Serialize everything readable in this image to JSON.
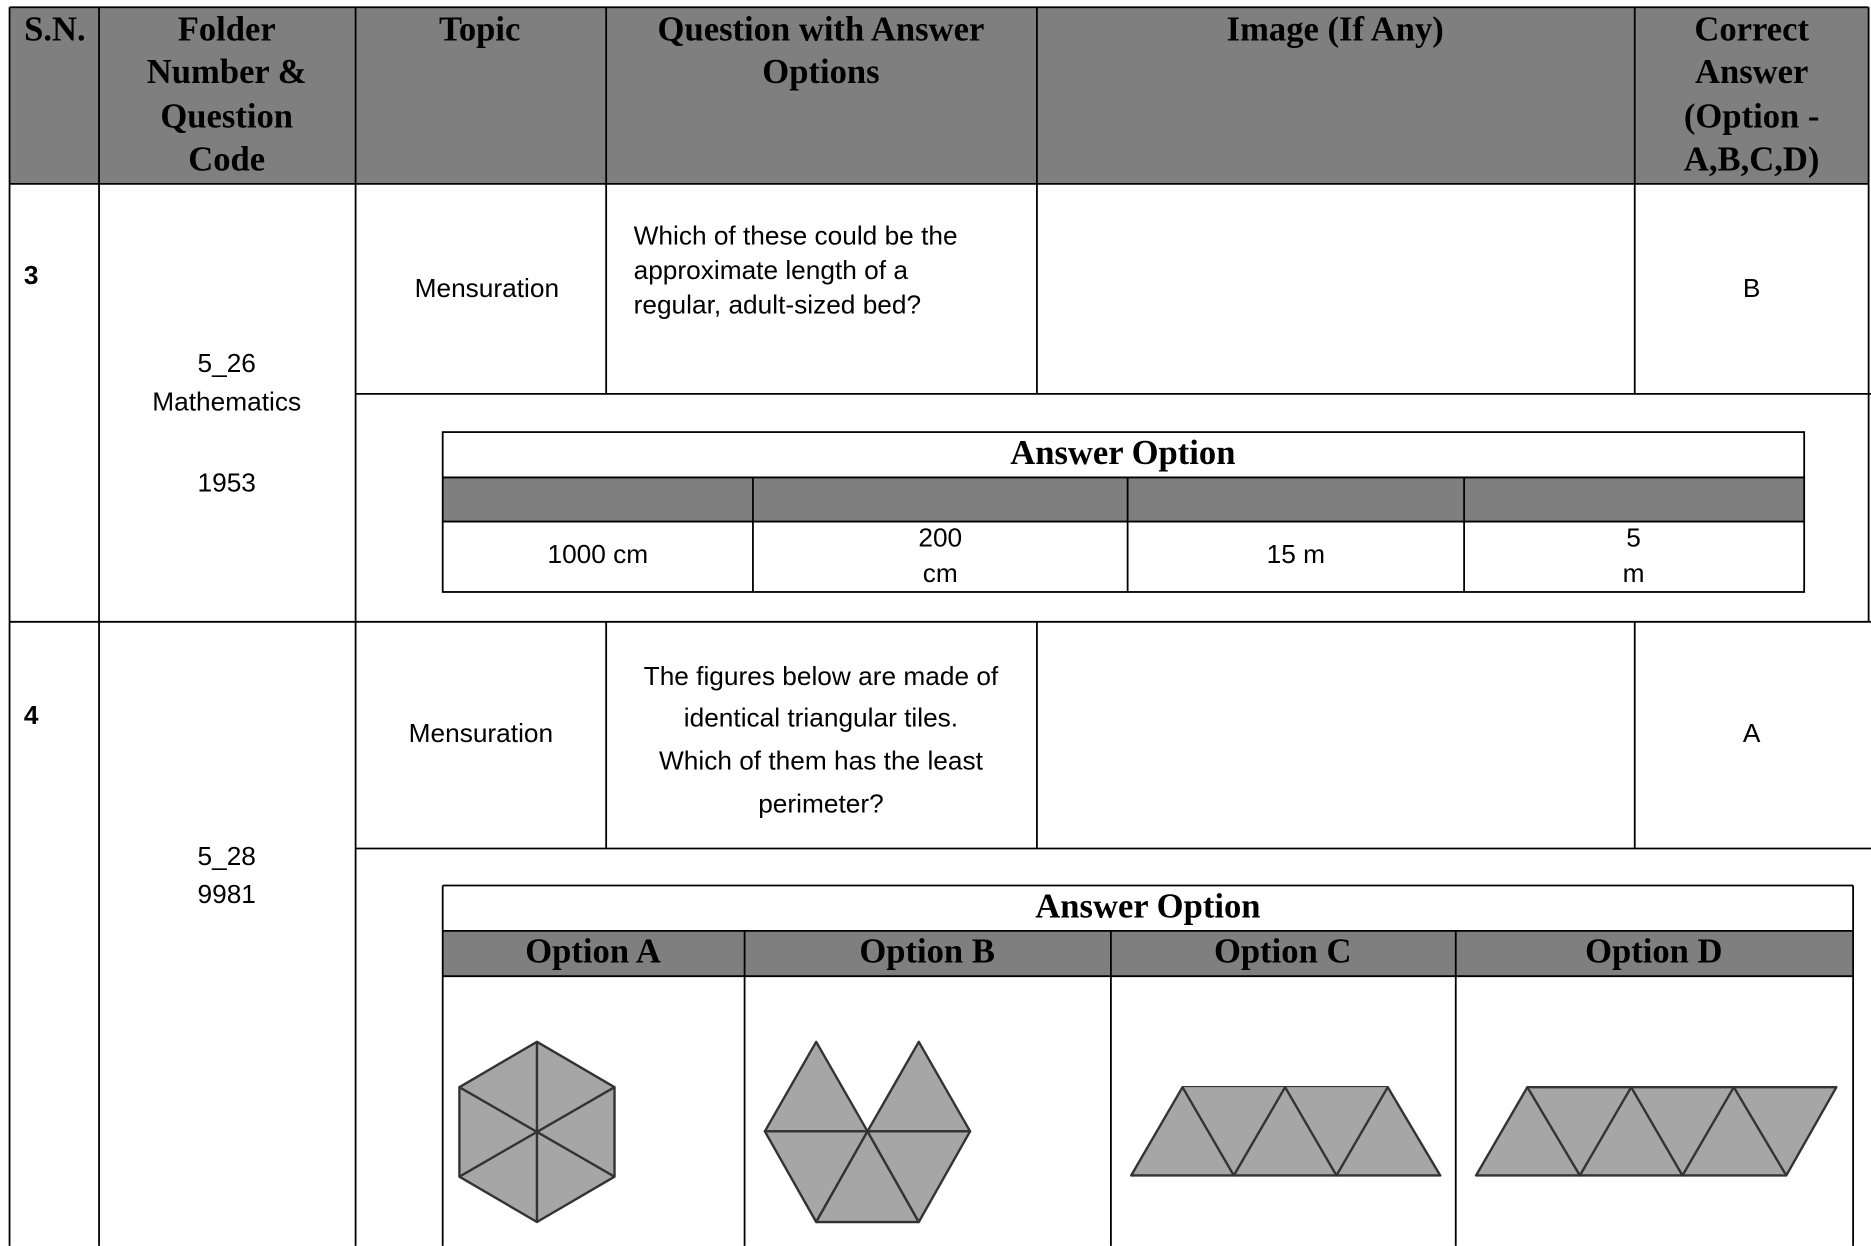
{
  "header": {
    "columns": [
      [
        "S.N."
      ],
      [
        "Folder",
        "Number &",
        "Question",
        "Code"
      ],
      [
        "Topic"
      ],
      [
        "Question with Answer",
        "Options"
      ],
      [
        "Image (If Any)"
      ],
      [
        "Correct",
        "Answer",
        "(Option -",
        "A,B,C,D)"
      ]
    ]
  },
  "rows": [
    {
      "sn": "3",
      "folder_code": [
        "5_26",
        "Mathematics",
        "1953"
      ],
      "topic": "Mensuration",
      "question": [
        "Which of these could be the",
        "approximate length of a",
        "regular, adult-sized bed?"
      ],
      "correct_answer": "B",
      "answer_options": {
        "title": "Answer Option",
        "values": [
          [
            "1000 cm"
          ],
          [
            "200",
            "cm"
          ],
          [
            "15 m"
          ],
          [
            "5",
            "m"
          ]
        ]
      }
    },
    {
      "sn": "4",
      "folder_code": [
        "5_28",
        "9981"
      ],
      "topic": "Mensuration",
      "question": [
        "The figures below are made of",
        "identical triangular tiles.",
        "Which of them has the least",
        "perimeter?"
      ],
      "correct_answer": "A",
      "answer_options": {
        "title": "Answer Option",
        "headers": [
          "Option A",
          "Option B",
          "Option C",
          "Option D"
        ]
      }
    }
  ]
}
